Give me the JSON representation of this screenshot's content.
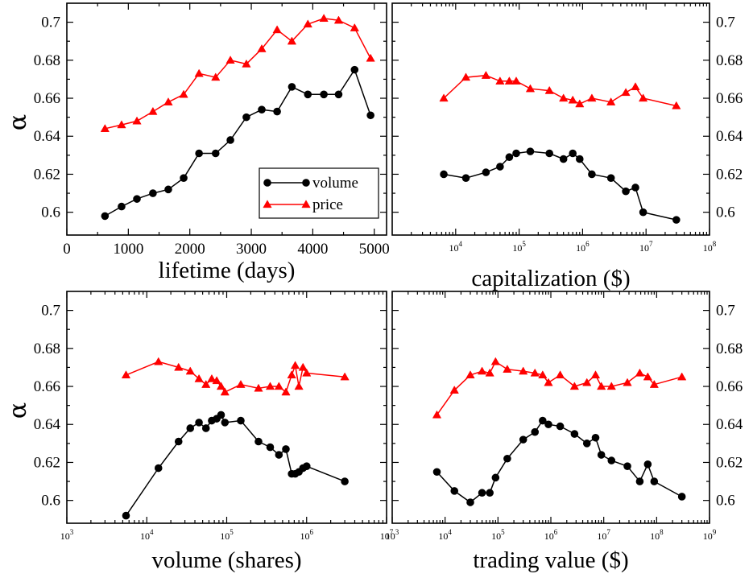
{
  "chart_data": [
    {
      "type": "line",
      "xscale": "linear",
      "xlabel": "lifetime (days)",
      "ylabel": "α",
      "xlim": [
        0,
        5200
      ],
      "ylim": [
        0.588,
        0.71
      ],
      "xticks": [
        0,
        1000,
        2000,
        3000,
        4000,
        5000
      ],
      "yticks": [
        0.6,
        0.62,
        0.64,
        0.66,
        0.68,
        0.7
      ],
      "ytick_side": "left",
      "legend": {
        "position": "center-right",
        "entries": [
          "volume",
          "price"
        ]
      },
      "series": [
        {
          "name": "volume",
          "color": "#000000",
          "marker": "circle",
          "x": [
            620,
            890,
            1140,
            1400,
            1650,
            1900,
            2150,
            2420,
            2660,
            2920,
            3170,
            3420,
            3660,
            3920,
            4180,
            4420,
            4680,
            4940
          ],
          "y": [
            0.598,
            0.603,
            0.607,
            0.61,
            0.612,
            0.618,
            0.631,
            0.631,
            0.638,
            0.65,
            0.654,
            0.653,
            0.666,
            0.662,
            0.662,
            0.662,
            0.675,
            0.651
          ]
        },
        {
          "name": "price",
          "color": "#ff0000",
          "marker": "triangle",
          "x": [
            620,
            890,
            1140,
            1400,
            1650,
            1900,
            2150,
            2420,
            2660,
            2920,
            3170,
            3420,
            3660,
            3920,
            4180,
            4420,
            4680,
            4940
          ],
          "y": [
            0.644,
            0.646,
            0.648,
            0.653,
            0.658,
            0.662,
            0.673,
            0.671,
            0.68,
            0.678,
            0.686,
            0.696,
            0.69,
            0.699,
            0.702,
            0.701,
            0.697,
            0.681
          ]
        }
      ]
    },
    {
      "type": "line",
      "xscale": "log",
      "xlabel": "capitalization ($)",
      "ylabel": "",
      "xlim": [
        1000,
        100000000
      ],
      "ylim": [
        0.588,
        0.71
      ],
      "xticks": [
        10000,
        100000,
        1000000,
        10000000,
        100000000
      ],
      "yticks": [
        0.6,
        0.62,
        0.64,
        0.66,
        0.68,
        0.7
      ],
      "ytick_side": "right",
      "series": [
        {
          "name": "volume",
          "color": "#000000",
          "marker": "circle",
          "x": [
            6500,
            14500,
            30000,
            50000,
            70000,
            90000,
            150000,
            300000,
            500000,
            700000,
            900000,
            1400000,
            2800000,
            4800000,
            6800000,
            9000000,
            30000000
          ],
          "y": [
            0.62,
            0.618,
            0.621,
            0.624,
            0.629,
            0.631,
            0.632,
            0.631,
            0.628,
            0.631,
            0.628,
            0.62,
            0.618,
            0.611,
            0.613,
            0.6,
            0.596
          ]
        },
        {
          "name": "price",
          "color": "#ff0000",
          "marker": "triangle",
          "x": [
            6500,
            14500,
            30000,
            50000,
            70000,
            90000,
            150000,
            300000,
            500000,
            700000,
            900000,
            1400000,
            2800000,
            4800000,
            6800000,
            9000000,
            30000000
          ],
          "y": [
            0.66,
            0.671,
            0.672,
            0.669,
            0.669,
            0.669,
            0.665,
            0.664,
            0.66,
            0.659,
            0.657,
            0.66,
            0.658,
            0.663,
            0.666,
            0.66,
            0.656
          ]
        }
      ]
    },
    {
      "type": "line",
      "xscale": "log",
      "xlabel": "volume (shares)",
      "ylabel": "α",
      "xlim": [
        1000,
        10000000
      ],
      "ylim": [
        0.588,
        0.71
      ],
      "xticks": [
        1000,
        10000,
        100000,
        1000000,
        10000000
      ],
      "yticks": [
        0.6,
        0.62,
        0.64,
        0.66,
        0.68,
        0.7
      ],
      "ytick_side": "left",
      "series": [
        {
          "name": "volume",
          "color": "#000000",
          "marker": "circle",
          "x": [
            5500,
            14000,
            25000,
            35000,
            45000,
            55000,
            65000,
            75000,
            85000,
            95000,
            150000,
            250000,
            350000,
            450000,
            550000,
            650000,
            720000,
            800000,
            900000,
            1000000,
            3000000
          ],
          "y": [
            0.592,
            0.617,
            0.631,
            0.638,
            0.641,
            0.638,
            0.642,
            0.643,
            0.645,
            0.641,
            0.642,
            0.631,
            0.628,
            0.624,
            0.627,
            0.614,
            0.614,
            0.615,
            0.617,
            0.618,
            0.61
          ]
        },
        {
          "name": "price",
          "color": "#ff0000",
          "marker": "triangle",
          "x": [
            5500,
            14000,
            25000,
            35000,
            45000,
            55000,
            65000,
            75000,
            85000,
            95000,
            150000,
            250000,
            350000,
            450000,
            550000,
            650000,
            720000,
            800000,
            900000,
            1000000,
            3000000
          ],
          "y": [
            0.666,
            0.673,
            0.67,
            0.668,
            0.664,
            0.661,
            0.664,
            0.663,
            0.66,
            0.657,
            0.661,
            0.659,
            0.66,
            0.66,
            0.657,
            0.666,
            0.671,
            0.66,
            0.67,
            0.667,
            0.665
          ]
        }
      ]
    },
    {
      "type": "line",
      "xscale": "log",
      "xlabel": "trading value ($)",
      "ylabel": "",
      "xlim": [
        1000,
        1000000000
      ],
      "ylim": [
        0.588,
        0.71
      ],
      "xticks": [
        1000,
        10000,
        100000,
        1000000,
        10000000,
        100000000,
        1000000000
      ],
      "yticks": [
        0.6,
        0.62,
        0.64,
        0.66,
        0.68,
        0.7
      ],
      "ytick_side": "right",
      "series": [
        {
          "name": "volume",
          "color": "#000000",
          "marker": "circle",
          "x": [
            7000,
            15000,
            30000,
            50000,
            70000,
            90000,
            150000,
            300000,
            500000,
            700000,
            900000,
            1500000,
            2800000,
            4800000,
            7000000,
            9000000,
            14000000,
            28000000,
            48000000,
            68000000,
            90000000,
            300000000
          ],
          "y": [
            0.615,
            0.605,
            0.599,
            0.604,
            0.604,
            0.612,
            0.622,
            0.632,
            0.636,
            0.642,
            0.64,
            0.639,
            0.635,
            0.63,
            0.633,
            0.624,
            0.621,
            0.618,
            0.61,
            0.619,
            0.61,
            0.602
          ]
        },
        {
          "name": "price",
          "color": "#ff0000",
          "marker": "triangle",
          "x": [
            7000,
            15000,
            30000,
            50000,
            70000,
            90000,
            150000,
            300000,
            500000,
            700000,
            900000,
            1500000,
            2800000,
            4800000,
            7000000,
            9000000,
            14000000,
            28000000,
            48000000,
            68000000,
            90000000,
            300000000
          ],
          "y": [
            0.645,
            0.658,
            0.666,
            0.668,
            0.667,
            0.673,
            0.669,
            0.668,
            0.667,
            0.666,
            0.662,
            0.666,
            0.66,
            0.662,
            0.666,
            0.66,
            0.66,
            0.662,
            0.667,
            0.665,
            0.661,
            0.665
          ]
        }
      ]
    }
  ]
}
